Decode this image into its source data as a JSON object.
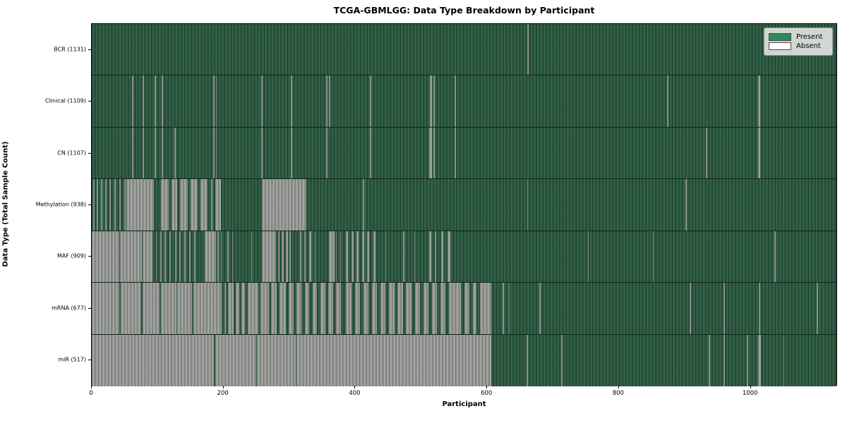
{
  "title": "TCGA-GBMLGG: Data Type Breakdown by Participant",
  "xlabel": "Participant",
  "ylabel": "Data Type (Total Sample Count)",
  "legend": {
    "present_label": "Present",
    "absent_label": "Absent"
  },
  "colors": {
    "present_swatch": "#2e8b57",
    "absent_swatch": "#ffffff",
    "present_stripe_dark": "#1d4130",
    "present_stripe_light": "#356349",
    "absent_stripe_dark": "#747774",
    "absent_stripe_light": "#a4a7a4",
    "legend_bg": "#dbdddb",
    "axis": "#000000"
  },
  "chart_data": {
    "type": "heatmap",
    "title": "TCGA-GBMLGG: Data Type Breakdown by Participant",
    "xlabel": "Participant",
    "ylabel": "Data Type (Total Sample Count)",
    "legend_entries": [
      "Present",
      "Absent"
    ],
    "legend_position": "upper right",
    "grid": false,
    "total_participants": 1132,
    "xlim": [
      0,
      1132
    ],
    "x_ticks": [
      0,
      200,
      400,
      600,
      800,
      1000
    ],
    "value_encoding": {
      "present": "green",
      "absent": "white/gray"
    },
    "rows": [
      {
        "label": "BCR (1131)",
        "data_type": "BCR",
        "present_count": 1131,
        "absent_segments": [
          [
            661,
            663
          ]
        ]
      },
      {
        "label": "Clinical (1109)",
        "data_type": "Clinical",
        "present_count": 1109,
        "absent_segments": [
          [
            61,
            63
          ],
          [
            77,
            79
          ],
          [
            95,
            97
          ],
          [
            106,
            108
          ],
          [
            184,
            186
          ],
          [
            188,
            190
          ],
          [
            257,
            259
          ],
          [
            302,
            304
          ],
          [
            356,
            358
          ],
          [
            360,
            362
          ],
          [
            422,
            424
          ],
          [
            513,
            516
          ],
          [
            518,
            521
          ],
          [
            551,
            553
          ],
          [
            873,
            875
          ],
          [
            1011,
            1014
          ]
        ]
      },
      {
        "label": "CN (1107)",
        "data_type": "CN",
        "present_count": 1107,
        "absent_segments": [
          [
            61,
            63
          ],
          [
            77,
            79
          ],
          [
            95,
            97
          ],
          [
            106,
            108
          ],
          [
            125,
            127
          ],
          [
            184,
            186
          ],
          [
            188,
            190
          ],
          [
            257,
            259
          ],
          [
            302,
            304
          ],
          [
            356,
            358
          ],
          [
            422,
            424
          ],
          [
            512,
            516
          ],
          [
            518,
            521
          ],
          [
            551,
            553
          ],
          [
            932,
            934
          ],
          [
            1011,
            1014
          ]
        ]
      },
      {
        "label": "Methylation (938)",
        "data_type": "Methylation",
        "present_count": 938,
        "absent_segments": [
          [
            2,
            4
          ],
          [
            8,
            10
          ],
          [
            14,
            16
          ],
          [
            20,
            22
          ],
          [
            27,
            29
          ],
          [
            34,
            36
          ],
          [
            42,
            44
          ],
          [
            49,
            51
          ],
          [
            53,
            94
          ],
          [
            105,
            117
          ],
          [
            121,
            130
          ],
          [
            134,
            146
          ],
          [
            150,
            161
          ],
          [
            165,
            176
          ],
          [
            181,
            183
          ],
          [
            187,
            196
          ],
          [
            258,
            326
          ],
          [
            411,
            413
          ],
          [
            661,
            662
          ],
          [
            901,
            903
          ]
        ]
      },
      {
        "label": "MAF (909)",
        "data_type": "MAF",
        "present_count": 909,
        "absent_segments": [
          [
            0,
            42
          ],
          [
            43,
            76
          ],
          [
            77,
            92
          ],
          [
            97,
            99
          ],
          [
            104,
            106
          ],
          [
            110,
            112
          ],
          [
            118,
            120
          ],
          [
            126,
            128
          ],
          [
            133,
            135
          ],
          [
            140,
            142
          ],
          [
            148,
            150
          ],
          [
            155,
            157
          ],
          [
            171,
            189
          ],
          [
            191,
            193
          ],
          [
            196,
            197
          ],
          [
            206,
            208
          ],
          [
            213,
            214
          ],
          [
            242,
            243
          ],
          [
            258,
            280
          ],
          [
            283,
            285
          ],
          [
            288,
            291
          ],
          [
            295,
            298
          ],
          [
            300,
            302
          ],
          [
            316,
            318
          ],
          [
            322,
            325
          ],
          [
            330,
            333
          ],
          [
            338,
            340
          ],
          [
            360,
            368
          ],
          [
            371,
            372
          ],
          [
            377,
            378
          ],
          [
            386,
            389
          ],
          [
            394,
            397
          ],
          [
            402,
            405
          ],
          [
            410,
            413
          ],
          [
            418,
            421
          ],
          [
            427,
            430
          ],
          [
            445,
            447
          ],
          [
            472,
            474
          ],
          [
            489,
            490
          ],
          [
            512,
            515
          ],
          [
            521,
            523
          ],
          [
            530,
            533
          ],
          [
            540,
            544
          ],
          [
            753,
            754
          ],
          [
            851,
            853
          ],
          [
            1036,
            1038
          ]
        ]
      },
      {
        "label": "mRNA (677)",
        "data_type": "mRNA",
        "present_count": 677,
        "absent_segments": [
          [
            0,
            42
          ],
          [
            44,
            75
          ],
          [
            77,
            103
          ],
          [
            105,
            128
          ],
          [
            130,
            152
          ],
          [
            154,
            197
          ],
          [
            201,
            204
          ],
          [
            207,
            215
          ],
          [
            218,
            224
          ],
          [
            227,
            232
          ],
          [
            237,
            253
          ],
          [
            256,
            269
          ],
          [
            272,
            281
          ],
          [
            285,
            294
          ],
          [
            299,
            306
          ],
          [
            311,
            318
          ],
          [
            323,
            330
          ],
          [
            335,
            342
          ],
          [
            347,
            354
          ],
          [
            359,
            366
          ],
          [
            371,
            378
          ],
          [
            386,
            394
          ],
          [
            399,
            407
          ],
          [
            412,
            420
          ],
          [
            425,
            433
          ],
          [
            438,
            446
          ],
          [
            451,
            459
          ],
          [
            464,
            472
          ],
          [
            477,
            485
          ],
          [
            490,
            498
          ],
          [
            503,
            511
          ],
          [
            516,
            524
          ],
          [
            529,
            537
          ],
          [
            542,
            560
          ],
          [
            565,
            573
          ],
          [
            578,
            584
          ],
          [
            589,
            606
          ],
          [
            623,
            625
          ],
          [
            633,
            634
          ],
          [
            679,
            681
          ],
          [
            907,
            909
          ],
          [
            959,
            961
          ],
          [
            1012,
            1014
          ],
          [
            1100,
            1102
          ]
        ]
      },
      {
        "label": "miR (517)",
        "data_type": "miR",
        "present_count": 517,
        "absent_segments": [
          [
            0,
            185
          ],
          [
            187,
            249
          ],
          [
            251,
            309
          ],
          [
            311,
            606
          ],
          [
            660,
            662
          ],
          [
            712,
            714
          ],
          [
            936,
            938
          ],
          [
            959,
            961
          ],
          [
            994,
            996
          ],
          [
            1011,
            1015
          ],
          [
            1050,
            1051
          ]
        ]
      }
    ]
  }
}
